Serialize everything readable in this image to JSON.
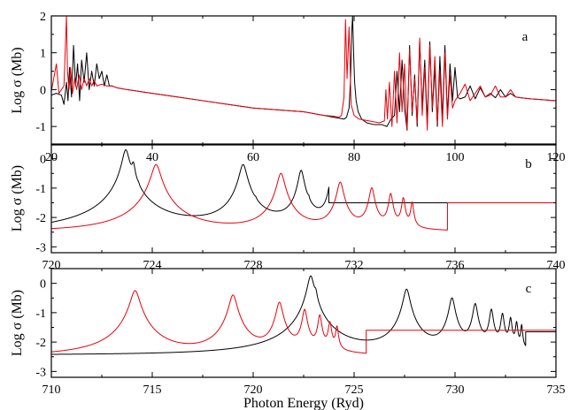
{
  "chart_data": [
    {
      "type": "line",
      "panel_label": "a",
      "xlim": [
        20,
        120
      ],
      "ylim": [
        -1.5,
        2
      ],
      "xticks": [
        20,
        40,
        60,
        80,
        100,
        120
      ],
      "xtick_labels": [
        "20",
        "40",
        "60",
        "80",
        "100",
        "120"
      ],
      "yticks": [
        -1,
        0,
        1,
        2
      ],
      "ytick_labels": [
        "-1",
        "0",
        "1",
        "2"
      ],
      "ylabel": "Log σ (Mb)",
      "xlabel": "",
      "grid": false,
      "series": [
        {
          "color": "#000000",
          "x": [
            20,
            21,
            22,
            22.5,
            23,
            23.3,
            23.6,
            24,
            24.4,
            24.8,
            25.2,
            25.6,
            26,
            26.5,
            27,
            27.5,
            28,
            28.5,
            29,
            29.5,
            30,
            30.5,
            31,
            31.5,
            32,
            33,
            35,
            40,
            45,
            50,
            55,
            60,
            65,
            70,
            74,
            76,
            78,
            78.5,
            79,
            79.3,
            79.5,
            79.7,
            79.9,
            80.1,
            80.4,
            80.8,
            81.5,
            82.5,
            84,
            85.5,
            86.5,
            87.3,
            88,
            88.5,
            89,
            89.5,
            90,
            90.5,
            91,
            91.5,
            92,
            92.5,
            93,
            93.5,
            94,
            94.5,
            95,
            95.5,
            96,
            96.5,
            97,
            97.5,
            98,
            98.5,
            99,
            99.5,
            100,
            100.5,
            101,
            102,
            103,
            104,
            105,
            106,
            107,
            108,
            109,
            110,
            111,
            112,
            113,
            115,
            118,
            120
          ],
          "y": [
            -0.15,
            -0.1,
            -0.15,
            -0.4,
            0.2,
            -0.3,
            0.6,
            -0.2,
            1.2,
            0.1,
            0.7,
            -0.3,
            0.8,
            0.2,
            1.0,
            0.0,
            0.5,
            0.1,
            0.7,
            0.3,
            0.5,
            0.1,
            0.4,
            0.1,
            0.1,
            0.05,
            0.0,
            -0.1,
            -0.2,
            -0.3,
            -0.4,
            -0.5,
            -0.55,
            -0.6,
            -0.7,
            -0.75,
            -0.8,
            -0.75,
            -0.5,
            0.3,
            1.5,
            2.0,
            1.0,
            0.2,
            -0.3,
            -0.6,
            -0.8,
            -0.9,
            -0.95,
            -0.95,
            -1.0,
            -0.8,
            -0.7,
            0.5,
            -0.6,
            0.8,
            -0.5,
            -1.1,
            1.2,
            -0.7,
            0.4,
            -1.0,
            1.3,
            -0.5,
            0.8,
            -0.9,
            1.3,
            -0.6,
            0.6,
            -1.0,
            0.9,
            -0.8,
            1.2,
            -0.7,
            0.7,
            -0.3,
            0.6,
            -0.2,
            -0.25,
            -0.2,
            0.1,
            -0.25,
            0.05,
            -0.2,
            -0.1,
            -0.22,
            0.0,
            -0.2,
            -0.1,
            -0.2,
            -0.22,
            -0.25,
            -0.28,
            -0.3
          ]
        },
        {
          "color": "#e8000b",
          "x": [
            20,
            21,
            21.5,
            22,
            22.5,
            23,
            23.2,
            23.5,
            23.8,
            24.2,
            24.6,
            25,
            25.5,
            26,
            26.5,
            27,
            27.5,
            28,
            28.5,
            29,
            30,
            31,
            32,
            33,
            35,
            40,
            45,
            50,
            55,
            60,
            65,
            70,
            74,
            76,
            77,
            77.5,
            78,
            78.3,
            78.6,
            79,
            79.4,
            80,
            81,
            83,
            85,
            86,
            86.3,
            86.6,
            87,
            87.5,
            88,
            88.5,
            89,
            89.5,
            90,
            90.5,
            91,
            91.5,
            92,
            92.5,
            93,
            93.5,
            94,
            94.5,
            95,
            95.5,
            96,
            96.5,
            97,
            97.5,
            98,
            98.5,
            99,
            99.5,
            100,
            101,
            102,
            103,
            104,
            105,
            106,
            107,
            108,
            109,
            110,
            111,
            112,
            113,
            115,
            118,
            120
          ],
          "y": [
            -0.05,
            0.7,
            -0.1,
            0.0,
            0.1,
            2.0,
            0.5,
            0.0,
            0.6,
            -0.1,
            0.3,
            0.0,
            0.4,
            0.0,
            0.3,
            0.1,
            0.3,
            0.1,
            0.25,
            0.1,
            0.15,
            0.1,
            0.1,
            0.05,
            0.0,
            -0.1,
            -0.2,
            -0.3,
            -0.4,
            -0.5,
            -0.55,
            -0.6,
            -0.7,
            -0.72,
            -0.75,
            -0.7,
            -0.2,
            1.9,
            0.3,
            1.7,
            -0.4,
            -0.7,
            -0.8,
            -0.85,
            -0.9,
            -0.85,
            0.0,
            -0.8,
            0.2,
            -1.0,
            0.5,
            -0.9,
            1.0,
            -0.6,
            0.7,
            -1.1,
            1.1,
            -0.6,
            0.3,
            -0.9,
            1.4,
            -0.7,
            0.6,
            -1.1,
            1.2,
            -0.5,
            0.9,
            -0.9,
            0.5,
            -1.0,
            1.0,
            -0.8,
            0.4,
            -0.5,
            -0.3,
            -0.1,
            0.15,
            -0.3,
            -0.1,
            0.1,
            -0.2,
            -0.15,
            0.1,
            -0.2,
            -0.2,
            0.0,
            -0.2,
            -0.22,
            -0.25,
            -0.28,
            -0.3
          ]
        }
      ]
    },
    {
      "type": "line",
      "panel_label": "b",
      "xlim": [
        720,
        740
      ],
      "ylim": [
        -3.2,
        0.5
      ],
      "xticks": [
        720,
        724,
        728,
        732,
        736,
        740
      ],
      "xtick_labels": [
        "720",
        "724",
        "728",
        "732",
        "736",
        "740"
      ],
      "yticks": [
        -3,
        -2,
        -1,
        0
      ],
      "ytick_labels": [
        "-3",
        "-2",
        "-1",
        "0"
      ],
      "ylabel": "Log σ (Mb)",
      "xlabel": "",
      "grid": false,
      "series": [
        {
          "color": "#000000",
          "baseline_start": [
            720,
            -2.5
          ],
          "baseline_end": [
            731,
            -2.25
          ],
          "tail": [
            731,
            -1.5,
            740,
            -1.5
          ],
          "peaks": [
            [
              722.95,
              0.3,
              0.12
            ],
            [
              723.25,
              -0.3,
              0.06
            ],
            [
              723.45,
              -1.7,
              0.04
            ],
            [
              727.6,
              -0.2,
              0.13
            ],
            [
              728.1,
              -2.0,
              0.04
            ],
            [
              729.9,
              -0.4,
              0.1
            ],
            [
              730.2,
              -1.8,
              0.03
            ],
            [
              731.1,
              -0.6,
              0.08
            ],
            [
              731.9,
              -0.8,
              0.07
            ],
            [
              732.45,
              -1.0,
              0.06
            ],
            [
              732.85,
              -1.2,
              0.05
            ],
            [
              733.15,
              -1.35,
              0.04
            ],
            [
              733.4,
              -1.45,
              0.035
            ],
            [
              733.6,
              -1.5,
              0.03
            ]
          ]
        },
        {
          "color": "#e8000b",
          "baseline_start": [
            720,
            -2.5
          ],
          "baseline_end": [
            735.7,
            -2.5
          ],
          "tail": [
            735.7,
            -1.5,
            740,
            -1.5
          ],
          "peaks": [
            [
              724.15,
              -0.2,
              0.16
            ],
            [
              729.1,
              -0.5,
              0.13
            ],
            [
              731.45,
              -0.8,
              0.11
            ],
            [
              732.7,
              -1.0,
              0.09
            ],
            [
              733.45,
              -1.2,
              0.07
            ],
            [
              733.95,
              -1.35,
              0.06
            ],
            [
              734.3,
              -1.5,
              0.05
            ]
          ]
        }
      ]
    },
    {
      "type": "line",
      "panel_label": "c",
      "xlim": [
        710,
        735
      ],
      "ylim": [
        -3.2,
        0.5
      ],
      "xticks": [
        710,
        715,
        720,
        725,
        730,
        735
      ],
      "xtick_labels": [
        "710",
        "715",
        "720",
        "725",
        "730",
        "735"
      ],
      "yticks": [
        -3,
        -2,
        -1,
        0
      ],
      "ytick_labels": [
        "-3",
        "-2",
        "-1",
        "0"
      ],
      "ylabel": "Log σ (Mb)",
      "xlabel": "Photon Energy (Ryd)",
      "grid": false,
      "series": [
        {
          "color": "#000000",
          "baseline_start": [
            710,
            -2.45
          ],
          "baseline_end": [
            733.5,
            -2.45
          ],
          "tail": [
            733.5,
            -1.65,
            735,
            -1.65
          ],
          "peaks": [
            [
              722.85,
              0.25,
              0.14
            ],
            [
              723.1,
              -0.6,
              0.06
            ],
            [
              727.6,
              -0.2,
              0.14
            ],
            [
              729.85,
              -0.5,
              0.12
            ],
            [
              731.0,
              -0.7,
              0.1
            ],
            [
              731.8,
              -0.9,
              0.08
            ],
            [
              732.35,
              -1.05,
              0.07
            ],
            [
              732.75,
              -1.2,
              0.06
            ],
            [
              733.05,
              -1.35,
              0.05
            ],
            [
              733.3,
              -1.45,
              0.04
            ]
          ]
        },
        {
          "color": "#e8000b",
          "baseline_start": [
            710,
            -2.5
          ],
          "baseline_end": [
            725.6,
            -2.5
          ],
          "tail": [
            725.6,
            -1.6,
            735,
            -1.6
          ],
          "peaks": [
            [
              714.15,
              -0.25,
              0.2
            ],
            [
              719.0,
              -0.4,
              0.17
            ],
            [
              721.3,
              -0.65,
              0.14
            ],
            [
              722.55,
              -0.9,
              0.1
            ],
            [
              723.3,
              -1.1,
              0.08
            ],
            [
              723.8,
              -1.35,
              0.07
            ],
            [
              724.15,
              -1.5,
              0.06
            ]
          ]
        }
      ]
    }
  ]
}
